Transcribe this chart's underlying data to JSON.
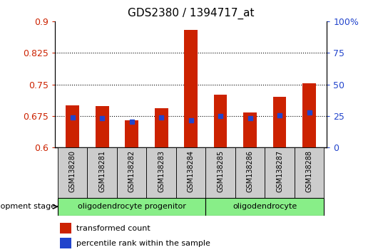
{
  "title": "GDS2380 / 1394717_at",
  "samples": [
    "GSM138280",
    "GSM138281",
    "GSM138282",
    "GSM138283",
    "GSM138284",
    "GSM138285",
    "GSM138286",
    "GSM138287",
    "GSM138288"
  ],
  "transformed_count": [
    0.7,
    0.698,
    0.665,
    0.693,
    0.88,
    0.725,
    0.683,
    0.72,
    0.752
  ],
  "percentile_rank_left": [
    0.672,
    0.67,
    0.662,
    0.671,
    0.665,
    0.675,
    0.669,
    0.676,
    0.684
  ],
  "ylim_left": [
    0.6,
    0.9
  ],
  "ylim_right": [
    0,
    100
  ],
  "yticks_left": [
    0.6,
    0.675,
    0.75,
    0.825,
    0.9
  ],
  "yticks_right": [
    0,
    25,
    50,
    75,
    100
  ],
  "bar_color": "#cc2200",
  "blue_color": "#2244cc",
  "group1_label": "oligodendrocyte progenitor",
  "group2_label": "oligodendrocyte",
  "group1_n": 5,
  "group2_n": 4,
  "group_color": "#88ee88",
  "dev_stage_label": "development stage",
  "legend_tc": "transformed count",
  "legend_pr": "percentile rank within the sample",
  "bar_bottom": 0.6,
  "bar_width": 0.45,
  "xlabel_bg": "#cccccc",
  "dot_size": 18
}
